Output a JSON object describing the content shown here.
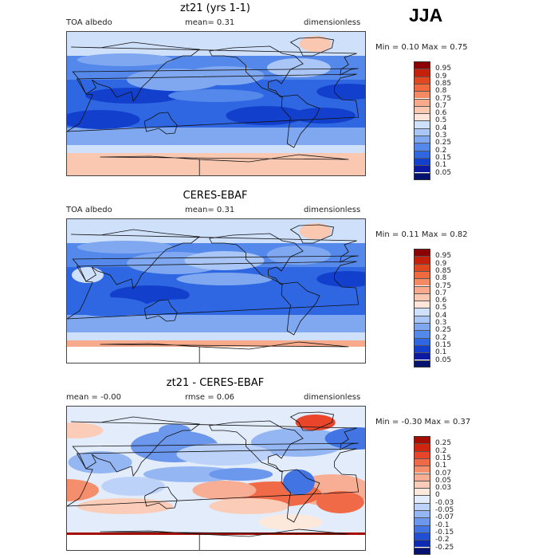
{
  "season": "JJA",
  "chart_data": [
    {
      "type": "heatmap",
      "title": "zt21 (yrs 1-1)",
      "variable": "TOA albedo",
      "stat_label": "mean=",
      "stat_value": "0.31",
      "units": "dimensionless",
      "min_label": "Min =",
      "min": "0.10",
      "max_label": "Max =",
      "max": "0.75",
      "colorbar": {
        "levels": [
          "0.95",
          "0.9",
          "0.85",
          "0.8",
          "0.75",
          "0.7",
          "0.6",
          "0.5",
          "0.4",
          "0.3",
          "0.25",
          "0.2",
          "0.15",
          "0.1",
          "0.05"
        ],
        "colors": [
          "#8b0000",
          "#c4200a",
          "#e0481f",
          "#ef6a3e",
          "#f48a63",
          "#f7ab8c",
          "#fac7b1",
          "#fde6d9",
          "#cfe0fb",
          "#a9c6f6",
          "#7fa8f0",
          "#5488ea",
          "#2f67e2",
          "#1240cc",
          "#0b1aa0",
          "#061270"
        ]
      },
      "map_style": "albedo_model"
    },
    {
      "type": "heatmap",
      "title": "CERES-EBAF",
      "variable": "TOA albedo",
      "stat_label": "mean=",
      "stat_value": "0.31",
      "units": "dimensionless",
      "min_label": "Min =",
      "min": "0.11",
      "max_label": "Max =",
      "max": "0.82",
      "colorbar": {
        "levels": [
          "0.95",
          "0.9",
          "0.85",
          "0.8",
          "0.75",
          "0.7",
          "0.6",
          "0.5",
          "0.4",
          "0.3",
          "0.25",
          "0.2",
          "0.15",
          "0.1",
          "0.05"
        ],
        "colors": [
          "#8b0000",
          "#c4200a",
          "#e0481f",
          "#ef6a3e",
          "#f48a63",
          "#f7ab8c",
          "#fac7b1",
          "#fde6d9",
          "#cfe0fb",
          "#a9c6f6",
          "#7fa8f0",
          "#5488ea",
          "#2f67e2",
          "#1240cc",
          "#0b1aa0",
          "#061270"
        ]
      },
      "map_style": "albedo_obs"
    },
    {
      "type": "heatmap",
      "title": "zt21 - CERES-EBAF",
      "variable": "",
      "stat_label": "mean =",
      "stat_value": "-0.00",
      "rmse_label": "rmse =",
      "rmse_value": "0.06",
      "units": "dimensionless",
      "min_label": "Min =",
      "min": "-0.30",
      "max_label": "Max =",
      "max": "0.37",
      "colorbar": {
        "levels": [
          "0.25",
          "0.2",
          "0.15",
          "0.1",
          "0.07",
          "0.05",
          "0.03",
          "0",
          "-0.03",
          "-0.05",
          "-0.07",
          "-0.1",
          "-0.15",
          "-0.2",
          "-0.25"
        ],
        "colors": [
          "#a50d00",
          "#d0250e",
          "#e8452a",
          "#f16a48",
          "#f58e6d",
          "#f8ae94",
          "#fbcdb8",
          "#fde9dc",
          "#e3ecfb",
          "#bcd2f8",
          "#94b6f3",
          "#6b97ec",
          "#4274e3",
          "#1f4fd4",
          "#0c2bb0",
          "#061270"
        ]
      },
      "map_style": "difference"
    }
  ]
}
